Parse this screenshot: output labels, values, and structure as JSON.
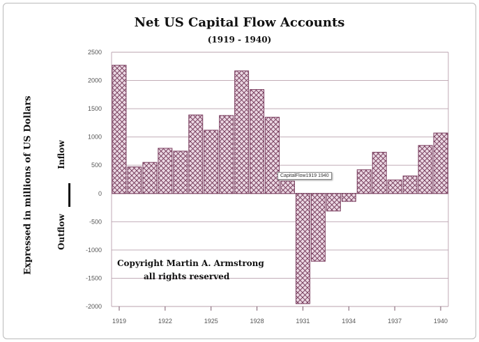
{
  "chart_data": {
    "type": "bar",
    "title": "Net US Capital Flow Accounts",
    "subtitle": "(1919 - 1940)",
    "ylabel": "Expressed in millions of US Dollars",
    "side_labels": {
      "upper": "Inflow",
      "lower": "Outflow"
    },
    "xlabel": "",
    "ylim": [
      -2000,
      2500
    ],
    "yticks": [
      2500,
      2000,
      1500,
      1000,
      500,
      0,
      -500,
      -1000,
      -1500,
      -2000
    ],
    "xtick_labels": [
      "1919",
      "1922",
      "1925",
      "1928",
      "1931",
      "1934",
      "1937",
      "1940"
    ],
    "categories": [
      "1919",
      "1920",
      "1921",
      "1922",
      "1923",
      "1924",
      "1925",
      "1926",
      "1927",
      "1928",
      "1929",
      "1930",
      "1931",
      "1932",
      "1933",
      "1934",
      "1935",
      "1936",
      "1937",
      "1938",
      "1939",
      "1940"
    ],
    "values": [
      2270,
      470,
      550,
      800,
      750,
      1390,
      1120,
      1380,
      2170,
      1840,
      1350,
      220,
      -1950,
      -1200,
      -310,
      -140,
      420,
      730,
      240,
      310,
      850,
      1070
    ],
    "grid": true,
    "legend": "none",
    "colors": {
      "bar_fill": "#e8d3df",
      "bar_stroke": "#7a3d5f",
      "grid": "#b9a0ad"
    },
    "annotations": {
      "copyright_line1": "Copyright Martin A. Armstrong",
      "copyright_line2": "all rights reserved",
      "tooltip": "CapitalFlow1919 1940"
    }
  }
}
